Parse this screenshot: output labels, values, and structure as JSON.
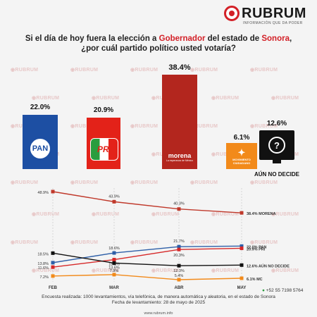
{
  "brand": {
    "name": "RUBRUM",
    "tagline": "INFORMACIÓN QUE DA PODER",
    "watermark": "RUBRUM",
    "red": "#d32027"
  },
  "question": {
    "part1": "Si el día de hoy fuera la elección a ",
    "highlight1": "Gobernador",
    "part2": " del estado de ",
    "highlight2": "Sonora",
    "part3": ",",
    "line2": "¿por cuál partido político usted votaría?"
  },
  "chart_data": [
    {
      "type": "bar",
      "categories": [
        "PAN",
        "PRI",
        "MORENA",
        "MC",
        "AÚN NO DECIDE"
      ],
      "values": [
        22.0,
        20.9,
        38.4,
        6.1,
        12.6
      ],
      "value_labels": [
        "22.0%",
        "20.9%",
        "38.4%",
        "6.1%",
        "12.6%"
      ],
      "colors": [
        "#1d4fa3",
        "#e32219",
        "#b3261e",
        "#f28a1a",
        "#111111"
      ],
      "logo_texts": [
        "PAN",
        "PRI",
        "morena",
        "MOVIMIENTO CIUDADANO",
        "AÚN NO DECIDE"
      ],
      "logo_subtext": "La esperanza de México"
    },
    {
      "type": "line",
      "x": [
        "FEB",
        "MAR",
        "ABR",
        "MAY"
      ],
      "series": [
        {
          "name": "MORENA",
          "values": [
            48.9,
            43.9,
            40.3,
            38.4
          ],
          "labels": [
            "48.9%",
            "43.9%",
            "40.3%",
            "38.4% MORENA"
          ],
          "color": "#c0392b"
        },
        {
          "name": "PAN",
          "values": [
            13.8,
            18.6,
            21.7,
            22.0
          ],
          "labels": [
            "13.8%",
            "18.6%",
            "21.7%",
            "22.0% PAN"
          ],
          "color": "#2e5fa8"
        },
        {
          "name": "PRI",
          "values": [
            11.6,
            15.3,
            20.3,
            20.9
          ],
          "labels": [
            "11.6%",
            "15.3%",
            "20.3%",
            "20.9% PRI"
          ],
          "color": "#d62828"
        },
        {
          "name": "AÚN NO DECIDE",
          "values": [
            18.5,
            13.6,
            12.3,
            12.6
          ],
          "labels": [
            "18.5%",
            "13.6%",
            "12.3%",
            "12.6% AÚN NO DECIDE"
          ],
          "color": "#111111"
        },
        {
          "name": "MC",
          "values": [
            7.2,
            7.9,
            5.4,
            6.1
          ],
          "labels": [
            "7.2%",
            "7.9%",
            "5.4%",
            "6.1%   MC"
          ],
          "color": "#f28a1a"
        }
      ],
      "ylim": [
        0,
        55
      ]
    }
  ],
  "footer": {
    "line1": "Encuesta realizada: 1000 levantamientos, vía telefónica, de manera automática y aleatoria, en el estado de Sonora",
    "line2": "Fecha de levantamiento: 28 de mayo de 2025",
    "phone": "+52 55 7198 5764",
    "url": "www.rubrum.info"
  }
}
